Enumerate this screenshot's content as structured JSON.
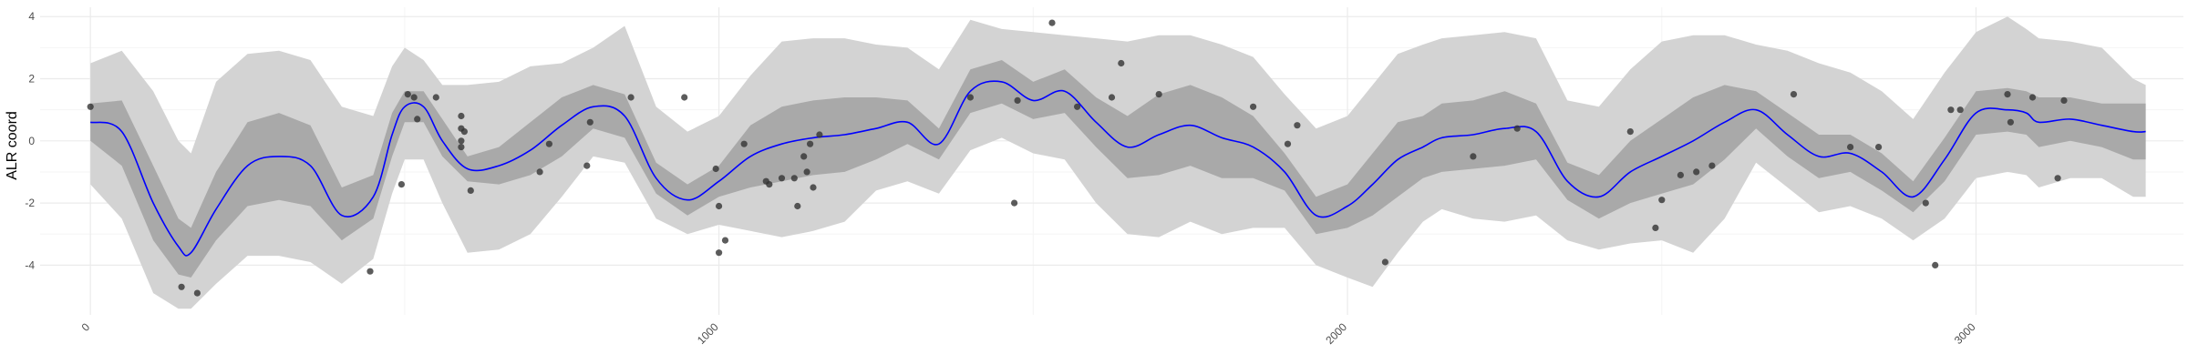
{
  "chart_data": {
    "type": "line",
    "title": "",
    "xlabel": "",
    "ylabel": "ALR coord",
    "xlim": [
      -80,
      3330
    ],
    "ylim": [
      -5.6,
      4.3
    ],
    "x_ticks": [
      0,
      1000,
      2000,
      3000
    ],
    "x_tick_labels": [
      "0",
      "1000",
      "2000",
      "3000"
    ],
    "y_ticks": [
      -4,
      -2,
      0,
      2,
      4
    ],
    "y_tick_labels": [
      "-4",
      "-2",
      "0",
      "2",
      "4"
    ],
    "grid": true,
    "legend": "none",
    "colors": {
      "mean_line": "#0000ff",
      "inner_band": "#a9a9a9",
      "outer_band": "#d3d3d3",
      "points": "#333333",
      "grid_major": "#ebebeb",
      "grid_minor": "#f5f5f5"
    },
    "series": [
      {
        "role": "mean",
        "x": [
          0,
          50,
          100,
          140,
          160,
          200,
          250,
          300,
          350,
          400,
          450,
          480,
          500,
          530,
          560,
          600,
          650,
          700,
          750,
          800,
          850,
          900,
          950,
          1000,
          1050,
          1100,
          1150,
          1200,
          1250,
          1300,
          1350,
          1400,
          1450,
          1500,
          1550,
          1600,
          1650,
          1700,
          1750,
          1800,
          1850,
          1900,
          1950,
          2000,
          2040,
          2080,
          2120,
          2150,
          2200,
          2250,
          2300,
          2350,
          2400,
          2450,
          2500,
          2550,
          2600,
          2650,
          2700,
          2750,
          2800,
          2850,
          2900,
          2950,
          3000,
          3050,
          3080,
          3100,
          3150,
          3200,
          3250,
          3270
        ],
        "y": [
          0.6,
          0.3,
          -2.0,
          -3.4,
          -3.6,
          -2.2,
          -0.8,
          -0.5,
          -0.8,
          -2.4,
          -1.8,
          0.2,
          1.1,
          1.1,
          0.0,
          -0.9,
          -0.8,
          -0.3,
          0.5,
          1.1,
          0.8,
          -1.2,
          -1.9,
          -1.3,
          -0.5,
          -0.1,
          0.1,
          0.2,
          0.4,
          0.6,
          -0.1,
          1.6,
          1.9,
          1.3,
          1.6,
          0.6,
          -0.2,
          0.2,
          0.5,
          0.1,
          -0.2,
          -1.0,
          -2.4,
          -2.1,
          -1.4,
          -0.6,
          -0.2,
          0.1,
          0.2,
          0.4,
          0.3,
          -1.3,
          -1.8,
          -1.0,
          -0.5,
          0.0,
          0.6,
          1.0,
          0.2,
          -0.5,
          -0.4,
          -1.0,
          -1.8,
          -0.6,
          0.9,
          1.0,
          0.9,
          0.6,
          0.7,
          0.5,
          0.3,
          0.3
        ]
      },
      {
        "role": "inner_band",
        "x": [
          0,
          50,
          100,
          140,
          160,
          200,
          250,
          300,
          350,
          400,
          450,
          480,
          500,
          530,
          560,
          600,
          650,
          700,
          750,
          800,
          850,
          900,
          950,
          1000,
          1050,
          1100,
          1150,
          1200,
          1250,
          1300,
          1350,
          1400,
          1450,
          1500,
          1550,
          1600,
          1650,
          1700,
          1750,
          1800,
          1850,
          1900,
          1950,
          2000,
          2040,
          2080,
          2120,
          2150,
          2200,
          2250,
          2300,
          2350,
          2400,
          2450,
          2500,
          2550,
          2600,
          2650,
          2700,
          2750,
          2800,
          2850,
          2900,
          2950,
          3000,
          3050,
          3080,
          3100,
          3150,
          3200,
          3250,
          3270
        ],
        "lower": [
          0.0,
          -0.8,
          -3.2,
          -4.3,
          -4.4,
          -3.2,
          -2.1,
          -1.9,
          -2.1,
          -3.2,
          -2.5,
          -0.5,
          0.6,
          0.6,
          -0.5,
          -1.3,
          -1.4,
          -1.1,
          -0.5,
          0.4,
          0.1,
          -1.7,
          -2.4,
          -1.8,
          -1.5,
          -1.3,
          -1.1,
          -1.0,
          -0.6,
          -0.1,
          -0.6,
          0.9,
          1.2,
          0.7,
          0.9,
          -0.2,
          -1.2,
          -1.1,
          -0.8,
          -1.2,
          -1.2,
          -1.6,
          -3.0,
          -2.8,
          -2.4,
          -1.8,
          -1.2,
          -1.0,
          -0.9,
          -0.8,
          -0.6,
          -1.9,
          -2.5,
          -2.0,
          -1.7,
          -1.4,
          -0.6,
          0.4,
          -0.5,
          -1.2,
          -1.0,
          -1.6,
          -2.3,
          -1.3,
          0.2,
          0.3,
          0.2,
          -0.2,
          0.0,
          -0.2,
          -0.6,
          -0.6
        ],
        "upper": [
          1.2,
          1.3,
          -0.8,
          -2.5,
          -2.8,
          -1.0,
          0.6,
          0.9,
          0.5,
          -1.5,
          -1.1,
          0.9,
          1.6,
          1.6,
          0.7,
          -0.5,
          -0.2,
          0.6,
          1.4,
          1.8,
          1.5,
          -0.7,
          -1.4,
          -0.8,
          0.5,
          1.1,
          1.3,
          1.4,
          1.4,
          1.3,
          0.4,
          2.3,
          2.6,
          1.9,
          2.3,
          1.4,
          0.8,
          1.5,
          1.8,
          1.4,
          0.8,
          -0.4,
          -1.8,
          -1.4,
          -0.4,
          0.6,
          0.8,
          1.2,
          1.3,
          1.6,
          1.2,
          -0.7,
          -1.1,
          0.0,
          0.7,
          1.4,
          1.8,
          1.6,
          0.9,
          0.2,
          0.2,
          -0.4,
          -1.3,
          0.1,
          1.6,
          1.7,
          1.6,
          1.4,
          1.4,
          1.2,
          1.2,
          1.2
        ]
      },
      {
        "role": "outer_band",
        "x": [
          0,
          50,
          100,
          140,
          160,
          200,
          250,
          300,
          350,
          400,
          450,
          480,
          500,
          530,
          560,
          600,
          650,
          700,
          750,
          800,
          850,
          900,
          950,
          1000,
          1050,
          1100,
          1150,
          1200,
          1250,
          1300,
          1350,
          1400,
          1450,
          1500,
          1550,
          1600,
          1650,
          1700,
          1750,
          1800,
          1850,
          1900,
          1950,
          2000,
          2040,
          2080,
          2120,
          2150,
          2200,
          2250,
          2300,
          2350,
          2400,
          2450,
          2500,
          2550,
          2600,
          2650,
          2700,
          2750,
          2800,
          2850,
          2900,
          2950,
          3000,
          3050,
          3080,
          3100,
          3150,
          3200,
          3250,
          3270
        ],
        "lower": [
          -1.4,
          -2.5,
          -4.9,
          -5.4,
          -5.4,
          -4.6,
          -3.7,
          -3.7,
          -3.9,
          -4.6,
          -3.8,
          -1.7,
          -0.6,
          -0.6,
          -2.0,
          -3.6,
          -3.5,
          -3.0,
          -1.8,
          -0.5,
          -0.7,
          -2.5,
          -3.0,
          -2.7,
          -2.9,
          -3.1,
          -2.9,
          -2.6,
          -1.6,
          -1.3,
          -1.7,
          -0.3,
          0.1,
          -0.4,
          -0.6,
          -2.0,
          -3.0,
          -3.1,
          -2.6,
          -3.0,
          -2.8,
          -2.8,
          -4.0,
          -4.4,
          -4.7,
          -3.6,
          -2.6,
          -2.2,
          -2.5,
          -2.6,
          -2.4,
          -3.2,
          -3.5,
          -3.3,
          -3.2,
          -3.6,
          -2.5,
          -0.7,
          -1.5,
          -2.3,
          -2.1,
          -2.5,
          -3.2,
          -2.5,
          -1.2,
          -1.0,
          -1.1,
          -1.5,
          -1.2,
          -1.2,
          -1.8,
          -1.8
        ],
        "upper": [
          2.5,
          2.9,
          1.6,
          0.0,
          -0.4,
          1.9,
          2.8,
          2.9,
          2.6,
          1.1,
          0.8,
          2.4,
          3.0,
          2.6,
          1.8,
          1.8,
          1.9,
          2.4,
          2.5,
          3.0,
          3.7,
          1.1,
          0.3,
          0.8,
          2.1,
          3.2,
          3.3,
          3.3,
          3.1,
          3.0,
          2.3,
          3.9,
          3.6,
          3.5,
          3.4,
          3.3,
          3.2,
          3.4,
          3.4,
          3.1,
          2.7,
          1.5,
          0.4,
          0.8,
          1.8,
          2.8,
          3.1,
          3.3,
          3.4,
          3.5,
          3.3,
          1.3,
          1.1,
          2.3,
          3.2,
          3.4,
          3.4,
          3.1,
          2.9,
          2.5,
          2.2,
          1.6,
          0.7,
          2.2,
          3.5,
          4.0,
          3.6,
          3.3,
          3.2,
          3.0,
          2.0,
          1.8
        ]
      }
    ],
    "points": [
      [
        0,
        1.1
      ],
      [
        145,
        -4.7
      ],
      [
        170,
        -4.9
      ],
      [
        445,
        -4.2
      ],
      [
        495,
        -1.4
      ],
      [
        505,
        1.5
      ],
      [
        515,
        1.4
      ],
      [
        520,
        0.7
      ],
      [
        550,
        1.4
      ],
      [
        590,
        0.4
      ],
      [
        595,
        0.3
      ],
      [
        590,
        0.8
      ],
      [
        590,
        0.0
      ],
      [
        590,
        -0.2
      ],
      [
        605,
        -1.6
      ],
      [
        715,
        -1.0
      ],
      [
        730,
        -0.1
      ],
      [
        790,
        -0.8
      ],
      [
        795,
        0.6
      ],
      [
        860,
        1.4
      ],
      [
        945,
        1.4
      ],
      [
        995,
        -0.9
      ],
      [
        1000,
        -2.1
      ],
      [
        1000,
        -3.6
      ],
      [
        1010,
        -3.2
      ],
      [
        1040,
        -0.1
      ],
      [
        1075,
        -1.3
      ],
      [
        1080,
        -1.4
      ],
      [
        1100,
        -1.2
      ],
      [
        1120,
        -1.2
      ],
      [
        1125,
        -2.1
      ],
      [
        1135,
        -0.5
      ],
      [
        1140,
        -1.0
      ],
      [
        1145,
        -0.1
      ],
      [
        1150,
        -1.5
      ],
      [
        1160,
        0.2
      ],
      [
        1400,
        1.4
      ],
      [
        1475,
        1.3
      ],
      [
        1470,
        -2.0
      ],
      [
        1530,
        3.8
      ],
      [
        1570,
        1.1
      ],
      [
        1625,
        1.4
      ],
      [
        1640,
        2.5
      ],
      [
        1700,
        1.5
      ],
      [
        1850,
        1.1
      ],
      [
        1905,
        -0.1
      ],
      [
        1920,
        0.5
      ],
      [
        2060,
        -3.9
      ],
      [
        2200,
        -0.5
      ],
      [
        2270,
        0.4
      ],
      [
        2450,
        0.3
      ],
      [
        2490,
        -2.8
      ],
      [
        2500,
        -1.9
      ],
      [
        2530,
        -1.1
      ],
      [
        2555,
        -1.0
      ],
      [
        2580,
        -0.8
      ],
      [
        2710,
        1.5
      ],
      [
        2800,
        -0.2
      ],
      [
        2845,
        -0.2
      ],
      [
        2920,
        -2.0
      ],
      [
        2935,
        -4.0
      ],
      [
        2960,
        1.0
      ],
      [
        2975,
        1.0
      ],
      [
        3050,
        1.5
      ],
      [
        3055,
        0.6
      ],
      [
        3090,
        1.4
      ],
      [
        3130,
        -1.2
      ],
      [
        3140,
        1.3
      ]
    ]
  }
}
